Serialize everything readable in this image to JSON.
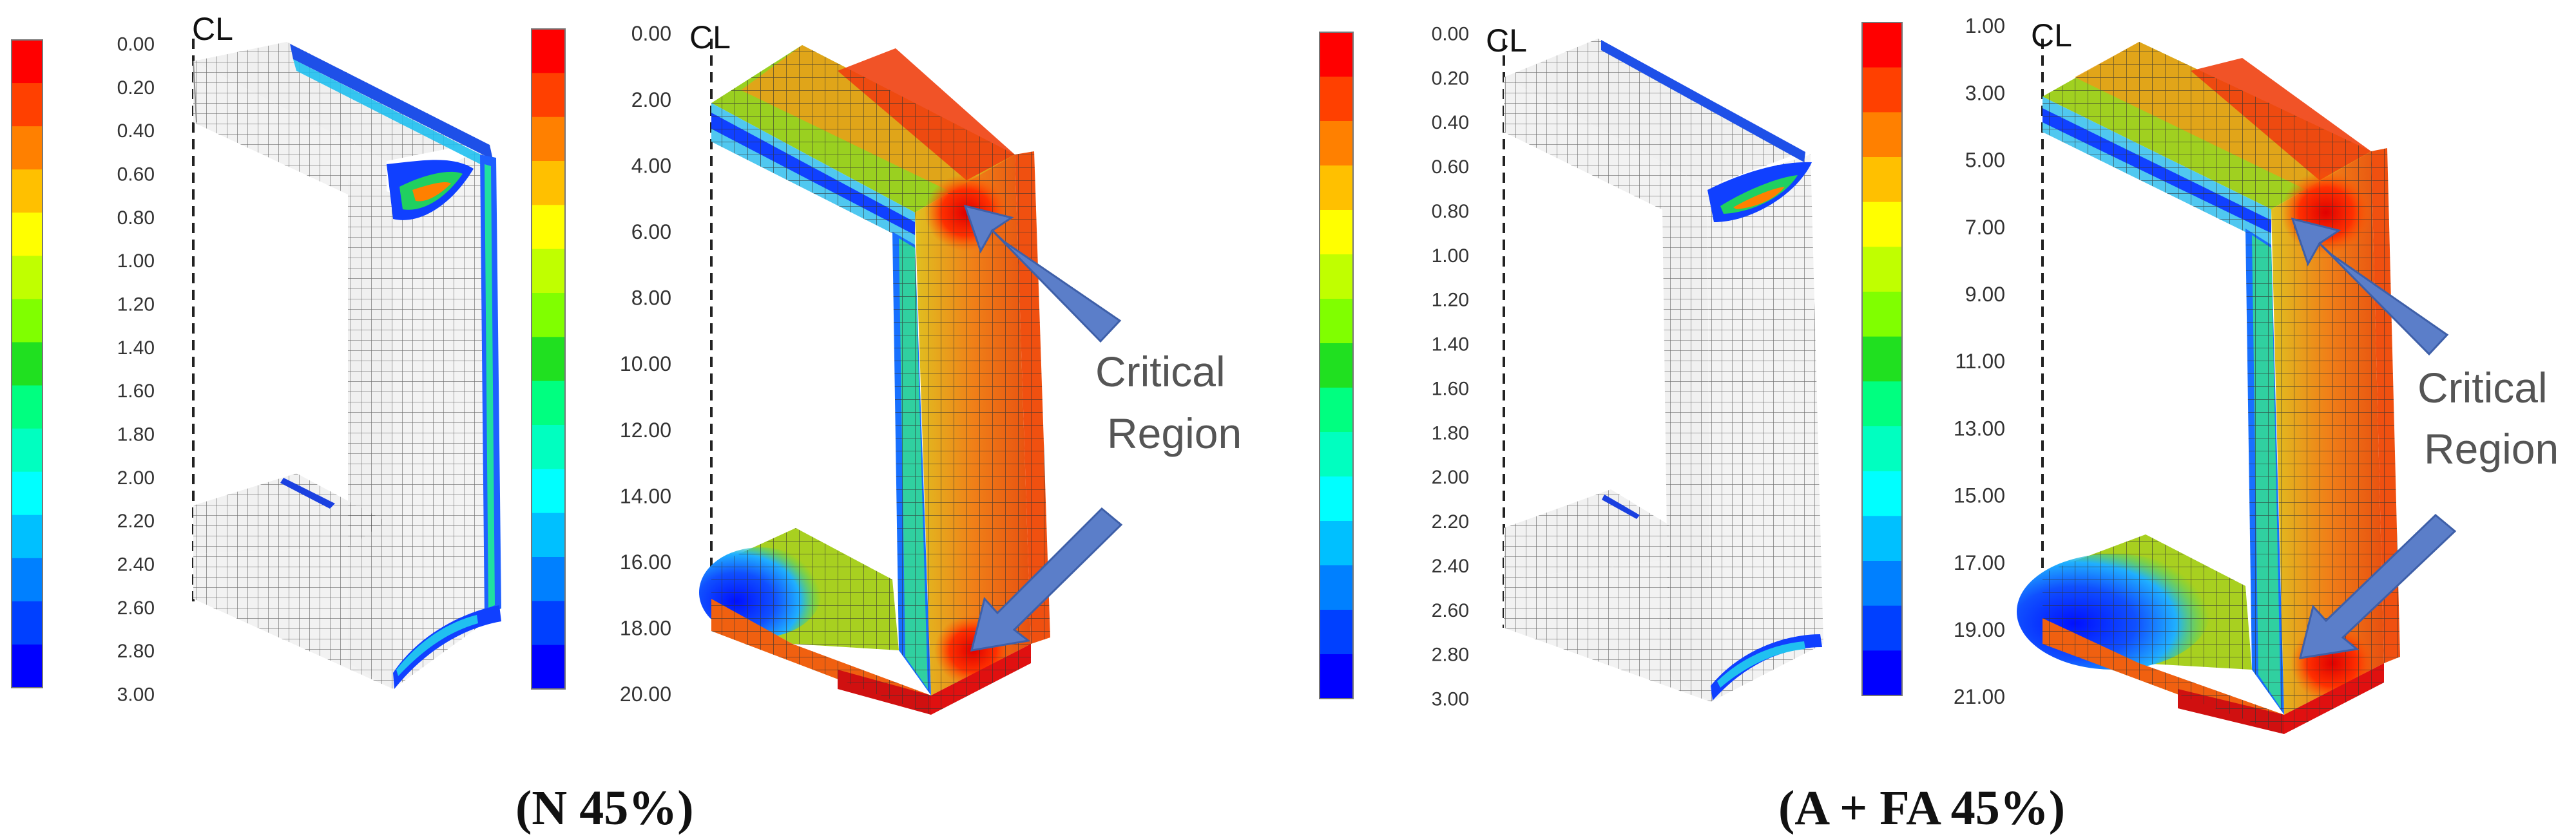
{
  "colors": {
    "scale": [
      "#ff0000",
      "#ff4000",
      "#ff8000",
      "#ffc000",
      "#ffff00",
      "#c0ff00",
      "#80ff00",
      "#20e020",
      "#00ff80",
      "#00ffc0",
      "#00ffff",
      "#00c0ff",
      "#0080ff",
      "#0040ff",
      "#0000ff"
    ],
    "arrow": "#5b7ec9",
    "mesh_line": "#333333",
    "inactive_mesh": "#f2f2f2"
  },
  "labels": {
    "centerline": "CL",
    "critical_region_line1": "Critical",
    "critical_region_line2": "Region"
  },
  "scales": {
    "damage": [
      "0.00",
      "0.20",
      "0.40",
      "0.60",
      "0.80",
      "1.00",
      "1.20",
      "1.40",
      "1.60",
      "1.80",
      "2.00",
      "2.20",
      "2.40",
      "2.60",
      "2.80",
      "3.00"
    ],
    "n45": [
      "0.00",
      "2.00",
      "4.00",
      "6.00",
      "8.00",
      "10.00",
      "12.00",
      "14.00",
      "16.00",
      "18.00",
      "20.00"
    ],
    "afa45": [
      "1.00",
      "3.00",
      "5.00",
      "7.00",
      "9.00",
      "11.00",
      "13.00",
      "15.00",
      "17.00",
      "19.00",
      "21.00"
    ]
  },
  "captions": {
    "left": "(N 45%)",
    "right": "(A + FA 45%)"
  }
}
